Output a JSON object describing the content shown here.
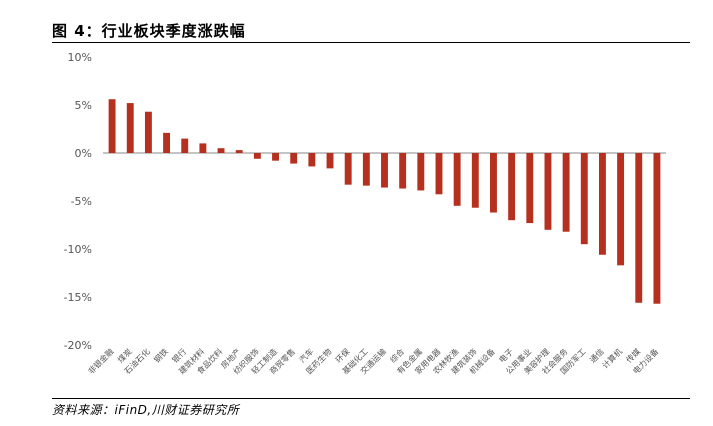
{
  "figure": {
    "title": "图 4：行业板块季度涨跌幅",
    "source": "资料来源：iFinD,川财证券研究所"
  },
  "colors": {
    "bar": "#b5301f",
    "axis": "#888888",
    "text": "#555555"
  },
  "chart_data": {
    "type": "bar",
    "title": "",
    "xlabel": "",
    "ylabel": "",
    "ylim": [
      -20,
      10
    ],
    "yticks": [
      10,
      5,
      0,
      -5,
      -10,
      -15,
      -20
    ],
    "ytick_labels": [
      "10%",
      "5%",
      "0%",
      "-5%",
      "-10%",
      "-15%",
      "-20%"
    ],
    "grid": false,
    "legend": "none",
    "categories": [
      "非银金融",
      "煤炭",
      "石油石化",
      "钢铁",
      "银行",
      "建筑材料",
      "食品饮料",
      "房地产",
      "纺织服饰",
      "轻工制造",
      "商贸零售",
      "汽车",
      "医药生物",
      "环保",
      "基础化工",
      "交通运输",
      "综合",
      "有色金属",
      "家用电器",
      "农林牧渔",
      "建筑装饰",
      "机械设备",
      "电子",
      "公用事业",
      "美容护理",
      "社会服务",
      "国防军工",
      "通信",
      "计算机",
      "传媒",
      "电力设备"
    ],
    "label_categories": [
      "非银金融",
      "煤炭",
      "石油石化",
      "钢铁",
      "银行",
      "建筑材料",
      "食品饮料",
      "房地产",
      "纺织服饰",
      "轻工制造",
      "商贸零售",
      "汽车",
      "医药生物",
      "环保",
      "基础化工",
      "交通运输",
      "综合",
      "有色金属",
      "家用电器",
      "农林牧渔",
      "建筑装饰",
      "机械设备",
      "电子",
      "公用事业",
      "美容护理",
      "社会服务",
      "国防军工",
      "通信",
      "计算机",
      "传媒",
      "电力设备"
    ],
    "values": [
      5.6,
      5.2,
      4.3,
      2.1,
      1.5,
      1.0,
      0.5,
      0.3,
      -0.6,
      -0.8,
      -1.1,
      -1.4,
      -1.6,
      -3.3,
      -3.4,
      -3.6,
      -3.7,
      -3.9,
      -4.3,
      -5.5,
      -5.7,
      -6.2,
      -7.0,
      -7.3,
      -8.0,
      -8.2,
      -9.5,
      -10.6,
      -11.7,
      -15.6,
      -15.7
    ]
  }
}
